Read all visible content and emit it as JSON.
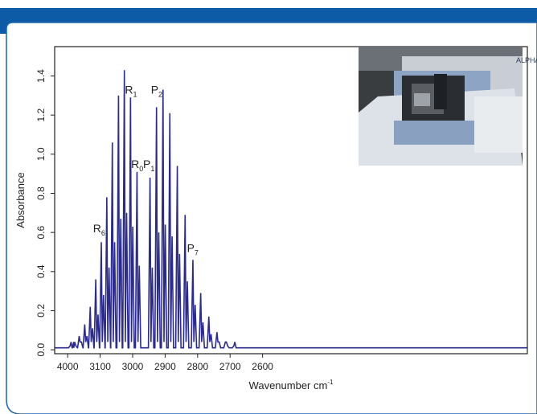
{
  "colors": {
    "header": "#0d5aa7",
    "frame_border": "#1f64ae",
    "spectrum": "#2b2b8f",
    "axis": "#222222"
  },
  "inset_image": {
    "icon": "spectrometer-photo",
    "brand_text": "ALPHA"
  },
  "chart_data": {
    "type": "line",
    "title": "",
    "xlabel_main": "Wavenumber cm",
    "xlabel_sup": "-1",
    "ylabel": "Absorbance",
    "x_reversed": true,
    "xlim": [
      4040,
      2585
    ],
    "ylim": [
      -0.02,
      1.55
    ],
    "x_ticks": [
      {
        "value": 4000,
        "label": "4000"
      },
      {
        "value": 3900,
        "label": "3100"
      },
      {
        "value": 3800,
        "label": "3000"
      },
      {
        "value": 3700,
        "label": "2900"
      },
      {
        "value": 3600,
        "label": "2800"
      },
      {
        "value": 3500,
        "label": "2700"
      },
      {
        "value": 3400,
        "label": "2600"
      }
    ],
    "y_ticks": [
      0.0,
      0.2,
      0.4,
      0.6,
      0.8,
      1.0,
      1.2,
      1.4
    ],
    "y_tick_labels": [
      "0.0",
      "0.2",
      "0.4",
      "0.6",
      "0.8",
      "1.0",
      "1.2",
      "1.4"
    ],
    "baseline": 0.01,
    "series": [
      {
        "peaks": [
          {
            "x": 3991,
            "y": 0.02,
            "d": 0.01
          },
          {
            "x": 3980,
            "y": 0.04,
            "d": 0.02
          },
          {
            "x": 3963,
            "y": 0.07,
            "d": 0.04
          },
          {
            "x": 3946,
            "y": 0.13,
            "d": 0.07
          },
          {
            "x": 3929,
            "y": 0.22,
            "d": 0.11
          },
          {
            "x": 3912,
            "y": 0.36,
            "d": 0.18
          },
          {
            "x": 3895,
            "y": 0.55,
            "d": 0.28
          },
          {
            "x": 3878,
            "y": 0.78,
            "d": 0.42
          },
          {
            "x": 3861,
            "y": 1.06,
            "d": 0.55
          },
          {
            "x": 3842,
            "y": 1.3,
            "d": 0.67
          },
          {
            "x": 3824,
            "y": 1.43,
            "d": 0.7
          },
          {
            "x": 3805,
            "y": 1.29,
            "d": 0.63
          },
          {
            "x": 3785,
            "y": 0.91,
            "d": 0.43
          },
          {
            "x": 3745,
            "y": 0.88,
            "d": 0.42
          },
          {
            "x": 3725,
            "y": 1.24,
            "d": 0.6
          },
          {
            "x": 3705,
            "y": 1.33,
            "d": 0.64
          },
          {
            "x": 3684,
            "y": 1.21,
            "d": 0.58
          },
          {
            "x": 3661,
            "y": 0.94,
            "d": 0.49
          },
          {
            "x": 3637,
            "y": 0.69,
            "d": 0.35
          },
          {
            "x": 3613,
            "y": 0.46,
            "d": 0.23
          },
          {
            "x": 3589,
            "y": 0.29,
            "d": 0.14
          },
          {
            "x": 3564,
            "y": 0.17,
            "d": 0.08
          },
          {
            "x": 3539,
            "y": 0.09,
            "d": 0.04
          },
          {
            "x": 3513,
            "y": 0.04,
            "d": 0.02
          },
          {
            "x": 3487,
            "y": 0.02,
            "d": 0.01
          }
        ]
      }
    ],
    "annotations": [
      {
        "main": "R",
        "sub": "6",
        "x": 3903,
        "y": 0.6
      },
      {
        "main": "R",
        "sub": "1",
        "x": 3805,
        "y": 1.31
      },
      {
        "main": "R",
        "sub": "0",
        "x": 3786,
        "y": 0.93
      },
      {
        "main": "P",
        "sub": "1",
        "x": 3750,
        "y": 0.93
      },
      {
        "main": "P",
        "sub": "2",
        "x": 3726,
        "y": 1.31
      },
      {
        "main": "P",
        "sub": "7",
        "x": 3615,
        "y": 0.5
      }
    ]
  }
}
